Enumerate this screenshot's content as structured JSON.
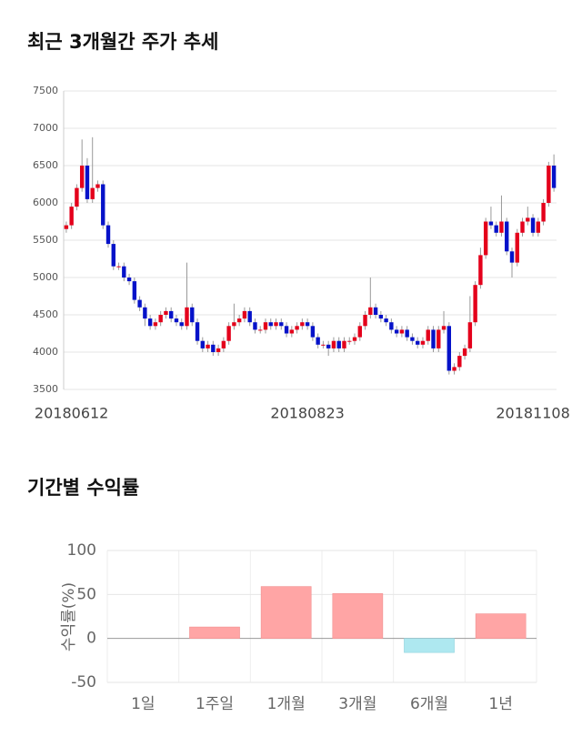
{
  "chart_data": [
    {
      "type": "candlestick",
      "title": "최근 3개월간 주가 추세",
      "categories": [
        null,
        "20180612",
        null,
        null,
        null,
        null,
        null,
        null,
        null,
        null,
        null,
        null,
        null,
        null,
        null,
        null,
        null,
        null,
        null,
        null,
        null,
        null,
        null,
        null,
        null,
        null,
        null,
        null,
        null,
        null,
        null,
        null,
        null,
        null,
        null,
        null,
        null,
        null,
        null,
        null,
        null,
        null,
        null,
        null,
        null,
        null,
        "20180823",
        null,
        null,
        null,
        null,
        null,
        null,
        null,
        null,
        null,
        null,
        null,
        null,
        null,
        null,
        null,
        null,
        null,
        null,
        null,
        null,
        null,
        null,
        null,
        null,
        null,
        null,
        null,
        null,
        null,
        null,
        null,
        null,
        null,
        null,
        null,
        null,
        null,
        null,
        null,
        null,
        null,
        null,
        "20181108",
        null,
        null,
        null,
        null
      ],
      "open": [
        5650,
        5700,
        5950,
        6200,
        6500,
        6050,
        6200,
        6250,
        5700,
        5450,
        5150,
        5150,
        5000,
        4950,
        4700,
        4600,
        4450,
        4350,
        4400,
        4500,
        4550,
        4450,
        4400,
        4350,
        4600,
        4400,
        4150,
        4050,
        4100,
        4000,
        4050,
        4150,
        4350,
        4400,
        4450,
        4550,
        4400,
        4300,
        4300,
        4400,
        4350,
        4400,
        4350,
        4250,
        4300,
        4350,
        4400,
        4350,
        4200,
        4100,
        4100,
        4050,
        4150,
        4050,
        4150,
        4150,
        4200,
        4350,
        4500,
        4600,
        4500,
        4450,
        4400,
        4300,
        4250,
        4300,
        4200,
        4150,
        4100,
        4150,
        4300,
        4050,
        4300,
        4350,
        3750,
        3800,
        3950,
        4050,
        4400,
        4900,
        5300,
        5750,
        5700,
        5600,
        5750,
        5350,
        5200,
        5600,
        5750,
        5800,
        5600,
        5750,
        6000,
        6500
      ],
      "high": [
        5750,
        6000,
        6250,
        6850,
        6600,
        6880,
        6300,
        6300,
        5750,
        5500,
        5200,
        5200,
        5050,
        5000,
        4750,
        4650,
        4500,
        4450,
        4550,
        4600,
        4600,
        4500,
        4450,
        5200,
        4650,
        4450,
        4200,
        4150,
        4150,
        4100,
        4200,
        4400,
        4650,
        4500,
        4600,
        4600,
        4450,
        4350,
        4450,
        4450,
        4450,
        4450,
        4400,
        4350,
        4400,
        4450,
        4450,
        4400,
        4250,
        4150,
        4150,
        4200,
        4200,
        4200,
        4200,
        4250,
        4400,
        4550,
        5000,
        4650,
        4550,
        4500,
        4450,
        4350,
        4350,
        4350,
        4250,
        4200,
        4200,
        4350,
        4350,
        4350,
        4550,
        4400,
        3850,
        4000,
        4100,
        4750,
        4950,
        5400,
        5800,
        5950,
        5750,
        6100,
        5800,
        5400,
        5650,
        5800,
        5950,
        5850,
        5800,
        6050,
        6550,
        6650
      ],
      "low": [
        5600,
        5650,
        5900,
        6150,
        6000,
        6000,
        6150,
        5650,
        5400,
        5100,
        5100,
        4950,
        4900,
        4650,
        4550,
        4350,
        4300,
        4300,
        4350,
        4450,
        4400,
        4350,
        4300,
        4300,
        4350,
        4100,
        4000,
        4000,
        3950,
        3950,
        4000,
        4100,
        4300,
        4350,
        4400,
        4350,
        4250,
        4250,
        4250,
        4300,
        4300,
        4300,
        4200,
        4200,
        4250,
        4300,
        4300,
        4150,
        4050,
        4050,
        3950,
        4000,
        4000,
        4000,
        4100,
        4100,
        4150,
        4300,
        4450,
        4450,
        4400,
        4350,
        4250,
        4200,
        4200,
        4150,
        4100,
        4050,
        4050,
        4100,
        4000,
        4000,
        4250,
        3700,
        3700,
        3750,
        3900,
        4000,
        4350,
        4850,
        5250,
        5650,
        5550,
        5550,
        5300,
        5000,
        5150,
        5550,
        5700,
        5550,
        5550,
        5700,
        5950,
        6150
      ],
      "close": [
        5700,
        5950,
        6200,
        6500,
        6050,
        6200,
        6250,
        5700,
        5450,
        5150,
        5150,
        5000,
        4950,
        4700,
        4600,
        4450,
        4350,
        4400,
        4500,
        4550,
        4450,
        4400,
        4350,
        4600,
        4400,
        4150,
        4050,
        4100,
        4000,
        4050,
        4150,
        4350,
        4400,
        4450,
        4550,
        4400,
        4300,
        4300,
        4400,
        4350,
        4400,
        4350,
        4250,
        4300,
        4350,
        4400,
        4350,
        4200,
        4100,
        4100,
        4050,
        4150,
        4050,
        4150,
        4150,
        4200,
        4350,
        4500,
        4600,
        4500,
        4450,
        4400,
        4300,
        4250,
        4300,
        4200,
        4150,
        4100,
        4150,
        4300,
        4050,
        4300,
        4350,
        3750,
        3800,
        3950,
        4050,
        4400,
        4900,
        5300,
        5750,
        5700,
        5600,
        5750,
        5350,
        5200,
        5600,
        5750,
        5800,
        5600,
        5750,
        6000,
        6500,
        6200
      ],
      "up_color": "#e4001b",
      "down_color": "#0512c9",
      "ylim": [
        3500,
        7500
      ],
      "yticks": [
        3500,
        4000,
        4500,
        5000,
        5500,
        6000,
        6500,
        7000,
        7500
      ],
      "grid": true
    },
    {
      "type": "bar",
      "title": "기간별 수익률",
      "ylabel": "수익률(%)",
      "categories": [
        "1일",
        "1주일",
        "1개월",
        "3개월",
        "6개월",
        "1년"
      ],
      "values": [
        0,
        13,
        59,
        51,
        -16,
        28
      ],
      "positive_color": "#ffa5a5",
      "negative_color": "#aee8f0",
      "ylim": [
        -50,
        100
      ],
      "yticks": [
        -50,
        0,
        50,
        100
      ],
      "grid": true
    }
  ]
}
